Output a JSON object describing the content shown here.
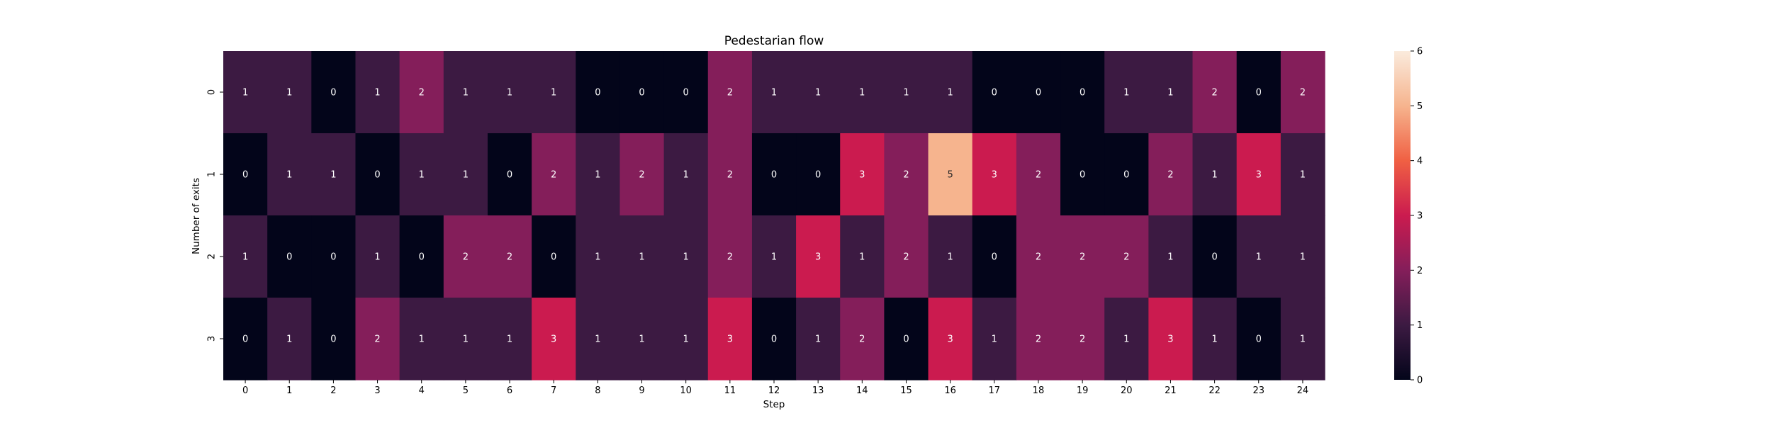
{
  "chart_data": {
    "type": "heatmap",
    "title": "Pedestarian flow",
    "xlabel": "Step",
    "ylabel": "Number of exits",
    "x_categories": [
      "0",
      "1",
      "2",
      "3",
      "4",
      "5",
      "6",
      "7",
      "8",
      "9",
      "10",
      "11",
      "12",
      "13",
      "14",
      "15",
      "16",
      "17",
      "18",
      "19",
      "20",
      "21",
      "22",
      "23",
      "24"
    ],
    "y_categories": [
      "0",
      "1",
      "2",
      "3"
    ],
    "values": [
      [
        1,
        1,
        0,
        1,
        2,
        1,
        1,
        1,
        0,
        0,
        0,
        2,
        1,
        1,
        1,
        1,
        1,
        0,
        0,
        0,
        1,
        1,
        2,
        0,
        2
      ],
      [
        0,
        1,
        1,
        0,
        1,
        1,
        0,
        2,
        1,
        2,
        1,
        2,
        0,
        0,
        3,
        2,
        5,
        3,
        2,
        0,
        0,
        2,
        1,
        3,
        1
      ],
      [
        1,
        0,
        0,
        1,
        0,
        2,
        2,
        0,
        1,
        1,
        1,
        2,
        1,
        3,
        1,
        2,
        1,
        0,
        2,
        2,
        2,
        1,
        0,
        1,
        1
      ],
      [
        0,
        1,
        0,
        2,
        1,
        1,
        1,
        3,
        1,
        1,
        1,
        3,
        0,
        1,
        2,
        0,
        3,
        1,
        2,
        2,
        1,
        3,
        1,
        0,
        1
      ]
    ],
    "colorbar": {
      "min": 0,
      "max": 6,
      "ticks": [
        "0",
        "1",
        "2",
        "3",
        "4",
        "5",
        "6"
      ]
    },
    "colormap": "rocket",
    "colors": {
      "0": "#03051a",
      "1": "#3c1a42",
      "2": "#841e5a",
      "3": "#cb1b4f",
      "4": "#f06043",
      "5": "#f6b48e",
      "6": "#faebdd"
    },
    "annotation_colors": {
      "on_dark": "#ffffff",
      "on_light": "#262626"
    }
  }
}
